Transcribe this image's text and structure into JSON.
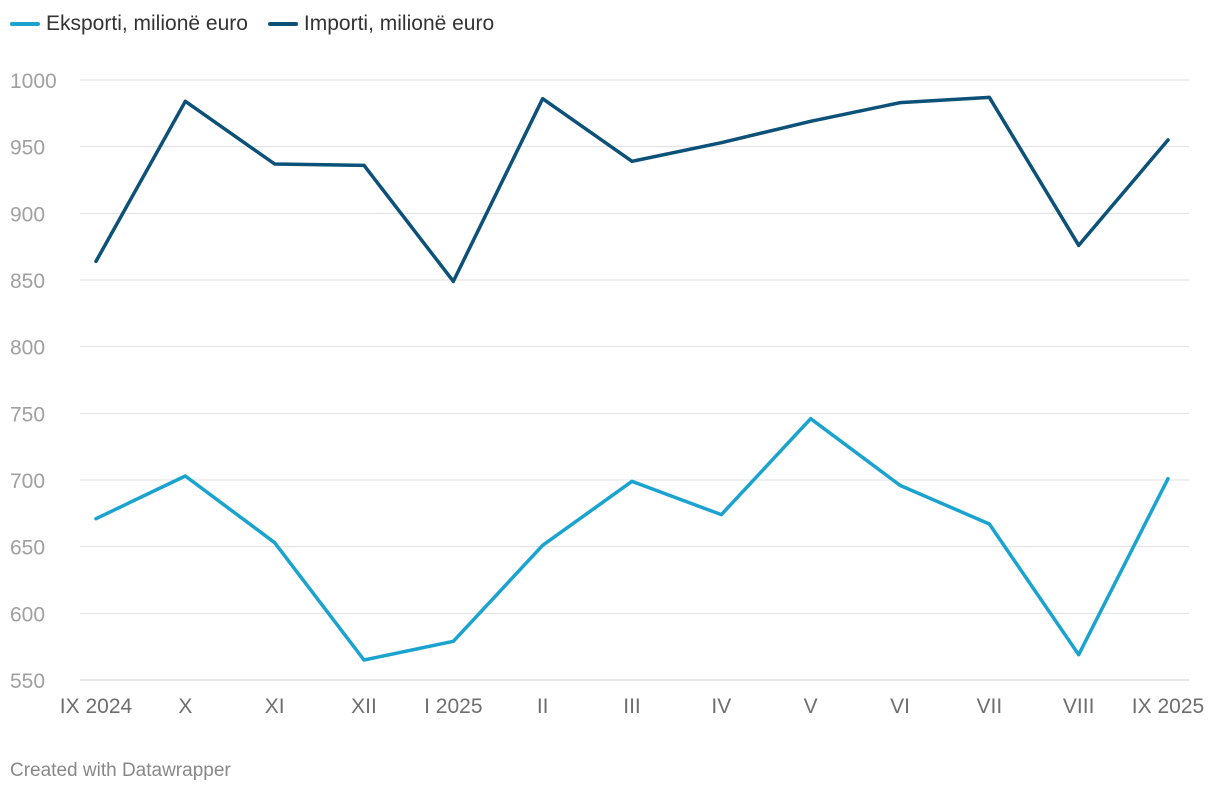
{
  "chart_data": {
    "type": "line",
    "title": "",
    "xlabel": "",
    "ylabel": "",
    "categories": [
      "IX 2024",
      "X",
      "XI",
      "XII",
      "I 2025",
      "II",
      "III",
      "IV",
      "V",
      "VI",
      "VII",
      "VIII",
      "IX 2025"
    ],
    "ylim": [
      550,
      1000
    ],
    "yticks": [
      550,
      600,
      650,
      700,
      750,
      800,
      850,
      900,
      950,
      1000
    ],
    "grid": true,
    "legend_position": "top-left",
    "series": [
      {
        "name": "Eksporti, milionë euro",
        "color": "#1ba3d0",
        "values": [
          671,
          703,
          653,
          565,
          579,
          651,
          699,
          674,
          746,
          696,
          667,
          569,
          701
        ]
      },
      {
        "name": "Importi, milionë euro",
        "color": "#0c5177",
        "values": [
          864,
          984,
          937,
          936,
          849,
          986,
          939,
          953,
          969,
          983,
          987,
          876,
          955
        ]
      }
    ]
  },
  "footer": "Created with Datawrapper"
}
